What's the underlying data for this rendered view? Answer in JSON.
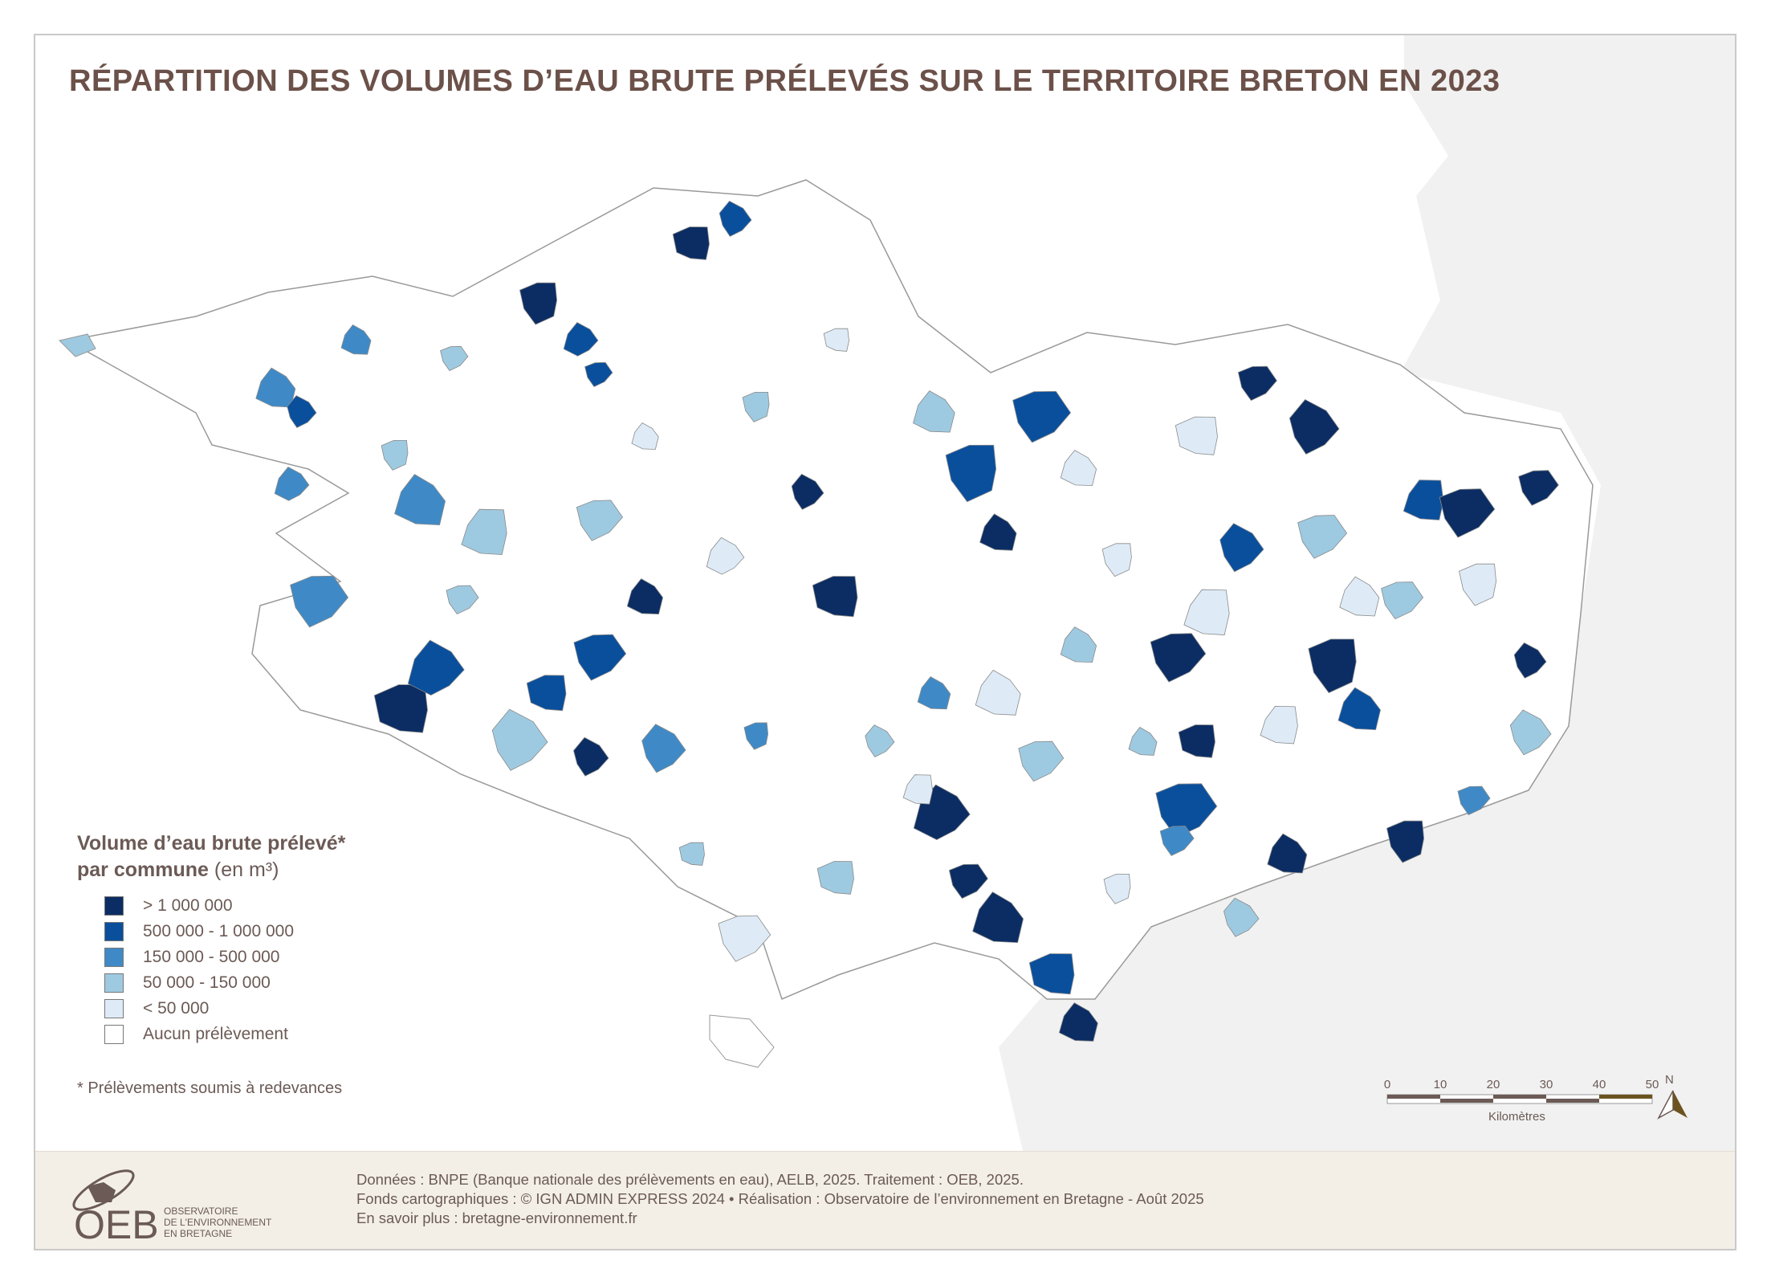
{
  "title": "RÉPARTITION DES VOLUMES D’EAU BRUTE PRÉLEVÉS SUR LE TERRITOIRE BRETON EN 2023",
  "legend": {
    "title_bold_1": "Volume d’eau brute prélevé*",
    "title_bold_2": "par commune",
    "title_unit": "(en m³)",
    "classes": [
      {
        "label": "> 1 000 000",
        "color": "#0b2d63"
      },
      {
        "label": "500 000 - 1 000 000",
        "color": "#0a4f9c"
      },
      {
        "label": "150 000 - 500 000",
        "color": "#3f8ac6"
      },
      {
        "label": "50 000 - 150 000",
        "color": "#9ecae1"
      },
      {
        "label": "< 50 000",
        "color": "#deebf7"
      },
      {
        "label": "Aucun prélèvement",
        "color": "#ffffff"
      }
    ]
  },
  "footnote": "* Prélèvements soumis à redevances",
  "scale": {
    "ticks": [
      "0",
      "10",
      "20",
      "30",
      "40",
      "50"
    ],
    "unit": "Kilomètres",
    "north": "N"
  },
  "footer": {
    "line1": "Données : BNPE (Banque nationale des prélèvements en eau), AELB, 2025. Traitement : OEB, 2025.",
    "line2": "Fonds cartographiques : © IGN ADMIN EXPRESS 2024 • Réalisation : Observatoire de l’environnement en Bretagne - Août 2025",
    "line3": "En savoir plus : bretagne-environnement.fr"
  },
  "logo": {
    "acronym": "OEB",
    "line1": "OBSERVATOIRE",
    "line2": "DE L'ENVIRONNEMENT",
    "line3": "EN BRETAGNE"
  },
  "colors": {
    "sea": "#f1f1f1",
    "land_other": "#f1f1f1",
    "text": "#6b5149",
    "footer_bg": "#f3efe7"
  }
}
